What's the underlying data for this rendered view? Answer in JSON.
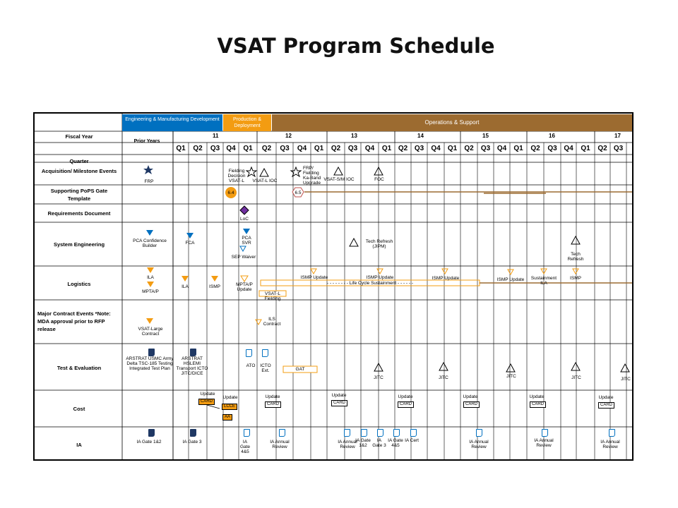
{
  "title": "VSAT Program Schedule",
  "phases": {
    "emd": "Engineering & Manufacturing Development",
    "pd": "Production & Deployment",
    "os": "Operations & Support"
  },
  "header": {
    "fiscal_year": "Fiscal Year",
    "prior_years": "Prior Years",
    "years": [
      "11",
      "12",
      "13",
      "14",
      "15",
      "16",
      "17"
    ],
    "quarters": [
      "Q1",
      "Q2",
      "Q3",
      "Q4"
    ],
    "last_quarters": [
      "Q1",
      "Q2",
      "Q3"
    ]
  },
  "rows": {
    "quarter": "Quarter",
    "acquisition": "Acquisition/ Milestone Events",
    "pops": "Supporting PoPS Gate Template",
    "requirements": "Requirements Document",
    "se": "System Engineering",
    "logistics": "Logistics",
    "contract": "Major Contract Events *Note: MDA approval prior to RFP release",
    "te": "Test & Evaluation",
    "cost": "Cost",
    "ia": "IA"
  },
  "labels": {
    "frp": "FRP",
    "fielding_decision": "Fielding Decision VSAT-L",
    "vsatl_ioc": "VSAT-L IOC",
    "frp_fielding": "FRP/ Fielding Ka-Band Upgrade",
    "vsats_ioc": "VSAT-S/M IOC",
    "foc": "FOC",
    "gate64": "6.4",
    "gate65": "6.5",
    "loc": "LoC",
    "pca_conf": "PCA Confidence Builder",
    "fca": "FCA",
    "pca_svr": "PCA SVR",
    "sep_waiver": "SEP Waiver",
    "tech_refresh_jipm": "Tech Refresh (JIPM)",
    "tech_refresh": "Tech Refresh",
    "ila": "ILA",
    "mpta_p": "MPTA/P",
    "ila2": "ILA",
    "ismp": "ISMP",
    "mpta_update": "MPTA/P Update",
    "ismp_update": "ISMP Update",
    "life_cycle": "- - - - - - - - Life Cycle Sustainment - - - - - -",
    "vsatl_fielding": "VSAT-L Fielding",
    "sustainment_ila": "Sustainment ILA",
    "vsat_large": "VSAT-Large Contract",
    "ils_contract": "ILS Contract",
    "arstrat_usmc": "ARSTRAT USMC Army Delta TSC-185 Testing Integrated Test Plan",
    "arstrat_hslemi": "ARSTRAT HSLEMI Transport ICTO JITC/DICE",
    "ato": "ATO",
    "icto_ext": "ICTO Ext.",
    "gat": "GAT",
    "jitc": "JITC",
    "update": "Update",
    "card": "CARD",
    "lcce": "LCCE",
    "aa": "AA",
    "ia_gate12": "IA Gate 1&2",
    "ia_gate3": "IA Gate 3",
    "ia_gate45": "IA Gate 4&5",
    "ia_annual": "IA Annual Review",
    "ia_gate12b": "IA Gate 1&2",
    "ia_gate3b": "IA Gate 3",
    "ia_gate45b": "IA Gate 4&5",
    "ia_cert": "IA Cert"
  },
  "colors": {
    "emd": "#0070c0",
    "pd": "#f39c12",
    "os": "#9c6b30",
    "triangle_blue": "#0070c0",
    "triangle_orange": "#f39c12",
    "gate_orange": "#f39c12",
    "loc_purple": "#7030a0"
  }
}
